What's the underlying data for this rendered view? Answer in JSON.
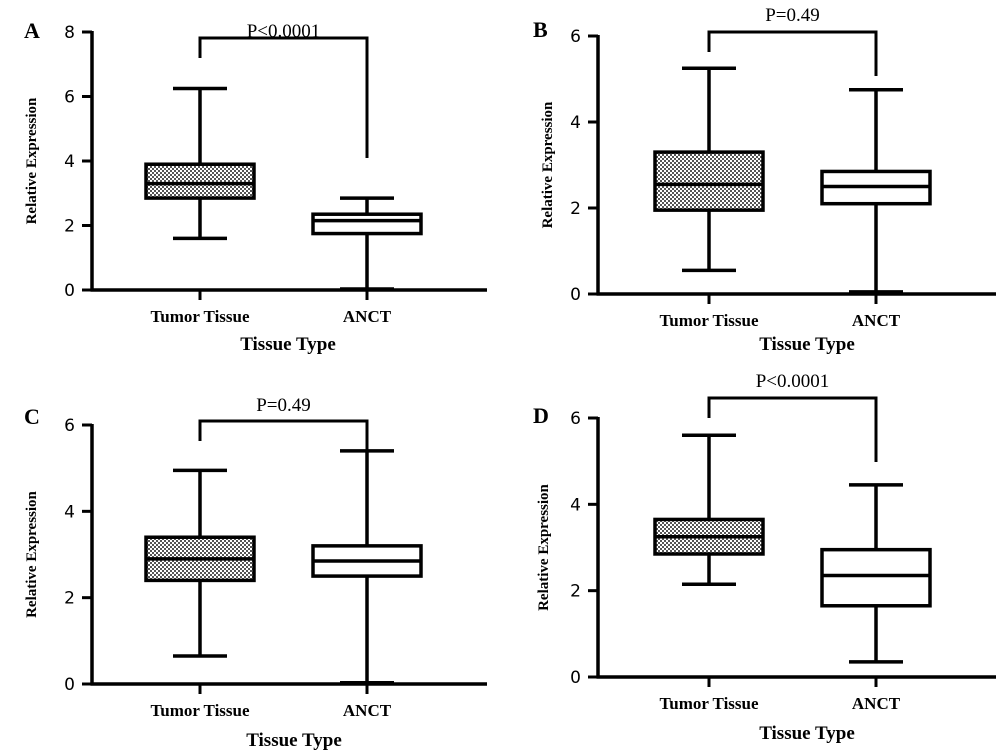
{
  "chart_data": [
    {
      "panel": "A",
      "type": "box",
      "categories": [
        "Tumor Tissue",
        "ANCT"
      ],
      "xlabel": "Tissue Type",
      "ylabel": "Relative Expression",
      "ylim": [
        0,
        8
      ],
      "yticks": [
        0,
        2,
        4,
        6,
        8
      ],
      "p_value": "P<0.0001",
      "boxes": [
        {
          "category": "Tumor Tissue",
          "min": 1.6,
          "q1": 2.85,
          "median": 3.3,
          "q3": 3.9,
          "max": 6.25,
          "fill": "hatched"
        },
        {
          "category": "ANCT",
          "min": 0.03,
          "q1": 1.75,
          "median": 2.15,
          "q3": 2.35,
          "max": 2.85,
          "fill": "white"
        }
      ]
    },
    {
      "panel": "B",
      "type": "box",
      "categories": [
        "Tumor Tissue",
        "ANCT"
      ],
      "xlabel": "Tissue Type",
      "ylabel": "Relative Expression",
      "ylim": [
        0,
        6
      ],
      "yticks": [
        0,
        2,
        4,
        6
      ],
      "p_value": "P=0.49",
      "boxes": [
        {
          "category": "Tumor Tissue",
          "min": 0.55,
          "q1": 1.95,
          "median": 2.55,
          "q3": 3.3,
          "max": 5.25,
          "fill": "hatched"
        },
        {
          "category": "ANCT",
          "min": 0.05,
          "q1": 2.1,
          "median": 2.5,
          "q3": 2.85,
          "max": 4.75,
          "fill": "white"
        }
      ]
    },
    {
      "panel": "C",
      "type": "box",
      "categories": [
        "Tumor Tissue",
        "ANCT"
      ],
      "xlabel": "Tissue Type",
      "ylabel": "Relative Expression",
      "ylim": [
        0,
        6
      ],
      "yticks": [
        0,
        2,
        4,
        6
      ],
      "p_value": "P=0.49",
      "boxes": [
        {
          "category": "Tumor Tissue",
          "min": 0.65,
          "q1": 2.4,
          "median": 2.9,
          "q3": 3.4,
          "max": 4.95,
          "fill": "hatched"
        },
        {
          "category": "ANCT",
          "min": 0.03,
          "q1": 2.5,
          "median": 2.85,
          "q3": 3.2,
          "max": 5.4,
          "fill": "white"
        }
      ]
    },
    {
      "panel": "D",
      "type": "box",
      "categories": [
        "Tumor Tissue",
        "ANCT"
      ],
      "xlabel": "Tissue Type",
      "ylabel": "Relative Expression",
      "ylim": [
        0,
        6
      ],
      "yticks": [
        0,
        2,
        4,
        6
      ],
      "p_value": "P<0.0001",
      "boxes": [
        {
          "category": "Tumor Tissue",
          "min": 2.15,
          "q1": 2.85,
          "median": 3.25,
          "q3": 3.65,
          "max": 5.6,
          "fill": "hatched"
        },
        {
          "category": "ANCT",
          "min": 0.35,
          "q1": 1.65,
          "median": 2.35,
          "q3": 2.95,
          "max": 4.45,
          "fill": "white"
        }
      ]
    }
  ]
}
